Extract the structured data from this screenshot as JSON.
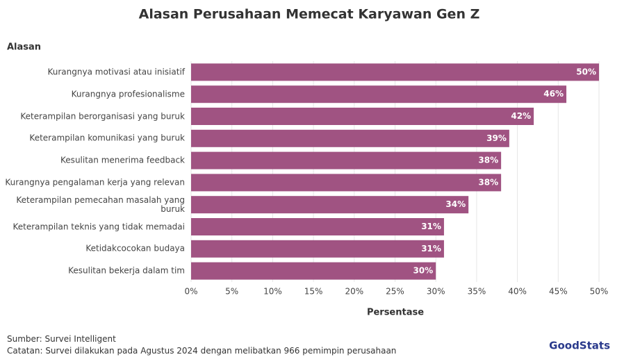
{
  "chart_data": {
    "type": "barh",
    "title": "Alasan Perusahaan Memecat Karyawan Gen Z",
    "y_label": "Alasan",
    "x_label": "Persentase",
    "categories": [
      "Kurangnya motivasi atau inisiatif",
      "Kurangnya profesionalisme",
      "Keterampilan berorganisasi yang buruk",
      "Keterampilan komunikasi yang buruk",
      "Kesulitan menerima feedback",
      "Kurangnya pengalaman kerja yang relevan",
      "Keterampilan pemecahan masalah yang buruk",
      "Keterampilan teknis yang tidak memadai",
      "Ketidakcocokan budaya",
      "Kesulitan bekerja dalam tim"
    ],
    "values": [
      50,
      46,
      42,
      39,
      38,
      38,
      34,
      31,
      31,
      30
    ],
    "value_labels": [
      "50%",
      "46%",
      "42%",
      "39%",
      "38%",
      "38%",
      "34%",
      "31%",
      "31%",
      "30%"
    ],
    "color": "#a05382",
    "xlim": [
      0,
      50
    ],
    "xticks": [
      {
        "value": 0,
        "label": "0%"
      },
      {
        "value": 5,
        "label": "5%"
      },
      {
        "value": 10,
        "label": "10%"
      },
      {
        "value": 15,
        "label": "15%"
      },
      {
        "value": 20,
        "label": "20%"
      },
      {
        "value": 25,
        "label": "25%"
      },
      {
        "value": 30,
        "label": "30%"
      },
      {
        "value": 35,
        "label": "35%"
      },
      {
        "value": 40,
        "label": "40%"
      },
      {
        "value": 45,
        "label": "45%"
      },
      {
        "value": 50,
        "label": "50%"
      }
    ],
    "grid": true,
    "source": "Sumber: Survei Intelligent",
    "note": "Catatan: Survei dilakukan pada Agustus 2024 dengan melibatkan 966 pemimpin perusahaan",
    "logo": "GoodStats"
  }
}
